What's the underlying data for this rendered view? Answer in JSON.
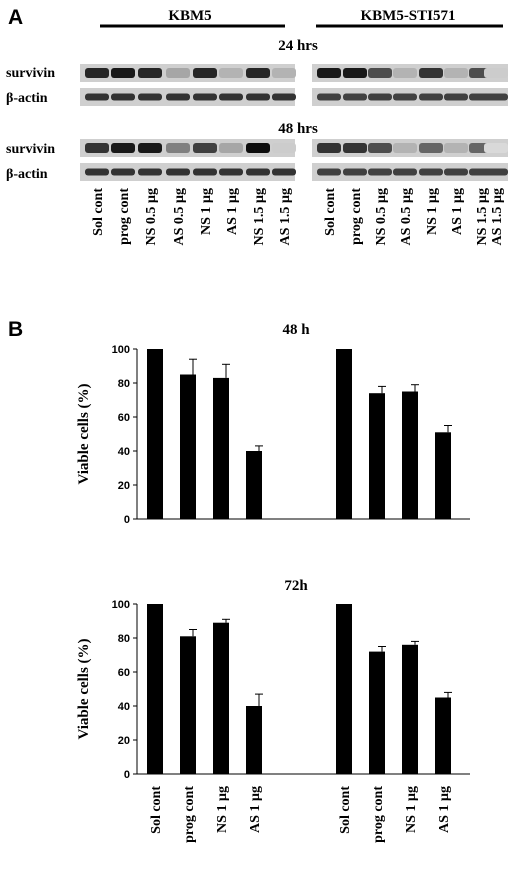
{
  "panel_a": {
    "letter": "A",
    "groups": [
      "KBM5",
      "KBM5-STI571"
    ],
    "blots": [
      {
        "time": "24 hrs",
        "rows": [
          {
            "label": "survivin",
            "intensity": [
              0.85,
              0.9,
              0.85,
              0.35,
              0.85,
              0.3,
              0.85,
              0.3,
              0.9,
              0.9,
              0.7,
              0.3,
              0.8,
              0.3,
              0.7,
              0.2
            ]
          },
          {
            "label": "β-actin",
            "intensity": [
              0.8,
              0.8,
              0.8,
              0.8,
              0.8,
              0.8,
              0.8,
              0.8,
              0.75,
              0.75,
              0.75,
              0.75,
              0.75,
              0.75,
              0.75,
              0.75
            ]
          }
        ]
      },
      {
        "time": "48 hrs",
        "rows": [
          {
            "label": "survivin",
            "intensity": [
              0.8,
              0.9,
              0.9,
              0.5,
              0.75,
              0.35,
              0.95,
              0.2,
              0.8,
              0.8,
              0.7,
              0.3,
              0.6,
              0.3,
              0.6,
              0.15
            ]
          },
          {
            "label": "β-actin",
            "intensity": [
              0.8,
              0.8,
              0.8,
              0.8,
              0.8,
              0.8,
              0.8,
              0.8,
              0.75,
              0.75,
              0.75,
              0.75,
              0.75,
              0.75,
              0.75,
              0.75
            ]
          }
        ]
      }
    ],
    "lanes": [
      "Sol cont",
      "prog cont",
      "NS 0.5 µg",
      "AS 0.5 µg",
      "NS 1 µg",
      "AS 1 µg",
      "NS 1.5 µg",
      "AS 1.5 µg"
    ]
  },
  "panel_b": {
    "letter": "B"
  },
  "chart_data": [
    {
      "type": "bar",
      "title": "48 h",
      "ylabel": "Viable cells (%)",
      "ylim": [
        0,
        100
      ],
      "yticks": [
        0,
        20,
        40,
        60,
        80,
        100
      ],
      "categories": [
        "Sol cont",
        "prog cont",
        "NS 1 µg",
        "AS 1 µg",
        "Sol cont",
        "prog cont",
        "NS 1 µg",
        "AS 1 µg"
      ],
      "groups": [
        "KBM5",
        "KBM5-STI571"
      ],
      "values": [
        100,
        85,
        83,
        40,
        100,
        74,
        75,
        51
      ],
      "errors": [
        0,
        9,
        8,
        3,
        0,
        4,
        4,
        4
      ],
      "bar_color": "#000000"
    },
    {
      "type": "bar",
      "title": "72h",
      "ylabel": "Viable cells (%)",
      "ylim": [
        0,
        100
      ],
      "yticks": [
        0,
        20,
        40,
        60,
        80,
        100
      ],
      "categories": [
        "Sol cont",
        "prog cont",
        "NS 1 µg",
        "AS 1 µg",
        "Sol cont",
        "prog cont",
        "NS 1 µg",
        "AS 1 µg"
      ],
      "groups": [
        "KBM5",
        "KBM5-STI571"
      ],
      "values": [
        100,
        81,
        89,
        40,
        100,
        72,
        76,
        45
      ],
      "errors": [
        0,
        4,
        2,
        7,
        0,
        3,
        2,
        3
      ],
      "bar_color": "#000000"
    }
  ]
}
